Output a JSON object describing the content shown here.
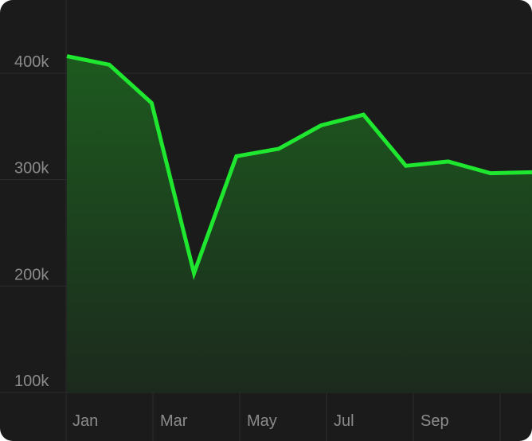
{
  "chart_data": {
    "type": "area",
    "title": "",
    "xlabel": "",
    "ylabel": "",
    "x": [
      "Jan",
      "",
      "Mar",
      "",
      "May",
      "",
      "Jul",
      "",
      "Sep",
      "",
      "",
      ""
    ],
    "xtick_labels": [
      "Jan",
      "Mar",
      "May",
      "Jul",
      "Sep"
    ],
    "ytick_labels": [
      "400k",
      "300k",
      "200k",
      "100k"
    ],
    "yticks": [
      400000,
      300000,
      200000,
      100000
    ],
    "ylim": [
      100000,
      450000
    ],
    "series": [
      {
        "values": [
          416000,
          408000,
          372000,
          212000,
          322000,
          329000,
          351000,
          361000,
          313000,
          317000,
          306000,
          307000
        ]
      }
    ],
    "grid": true,
    "colors": {
      "line": "#1fe62e",
      "fill_top": "#1d5a1f",
      "fill_bottom": "#1c2a1d",
      "background": "#1b1b1c",
      "grid": "#2c2c2d",
      "text": "#8b8b8c"
    }
  }
}
